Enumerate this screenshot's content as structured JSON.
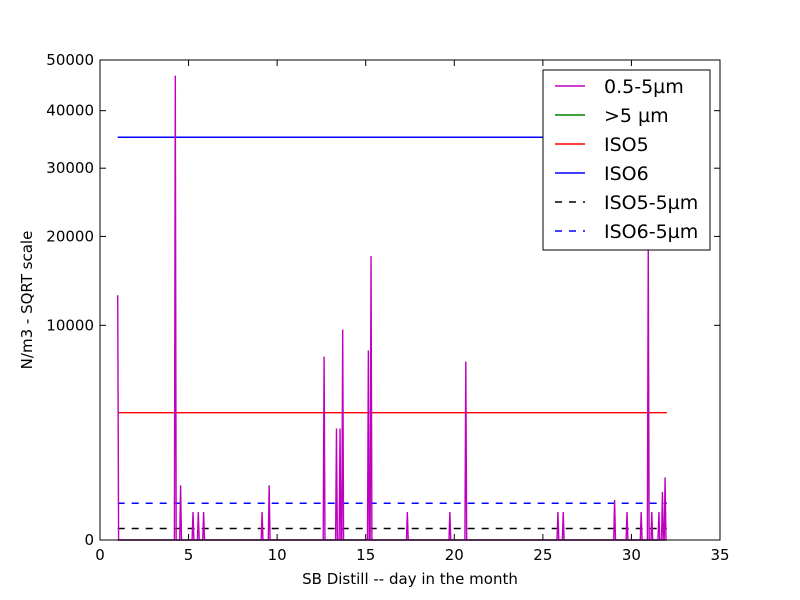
{
  "chart_data": {
    "type": "line",
    "xlabel": "SB Distill -- day in the month",
    "ylabel": "N/m3 - SQRT scale",
    "y_scale": "sqrt",
    "xlim": [
      0,
      35
    ],
    "ylim": [
      0,
      50000
    ],
    "xticks": [
      0,
      5,
      10,
      15,
      20,
      25,
      30,
      35
    ],
    "yticks": [
      0,
      10000,
      20000,
      30000,
      40000,
      50000
    ],
    "legend_position": "top-right",
    "series": [
      {
        "name": "0.5-5µm",
        "color": "#bf00bf",
        "style": "solid",
        "x": [
          1.0,
          1.05,
          4.2,
          4.25,
          4.3,
          4.5,
          4.55,
          4.6,
          5.2,
          5.25,
          5.3,
          5.5,
          5.55,
          5.6,
          5.8,
          5.85,
          5.9,
          9.1,
          9.15,
          9.2,
          9.5,
          9.55,
          9.6,
          12.6,
          12.65,
          12.7,
          13.3,
          13.35,
          13.4,
          13.5,
          13.55,
          13.6,
          13.65,
          13.7,
          13.75,
          15.1,
          15.15,
          15.2,
          15.25,
          15.3,
          15.35,
          17.3,
          17.35,
          17.4,
          19.7,
          19.75,
          19.8,
          20.6,
          20.65,
          20.7,
          25.8,
          25.85,
          25.9,
          26.1,
          26.15,
          26.2,
          29.0,
          29.05,
          29.1,
          29.7,
          29.75,
          29.8,
          30.5,
          30.55,
          30.6,
          30.9,
          30.95,
          31.0,
          31.1,
          31.15,
          31.2,
          31.5,
          31.55,
          31.6,
          31.7,
          31.75,
          31.8,
          31.85,
          31.9,
          31.95
        ],
        "y": [
          13000,
          0,
          0,
          46800,
          0,
          0,
          650,
          0,
          0,
          170,
          0,
          0,
          170,
          0,
          0,
          170,
          0,
          0,
          170,
          0,
          0,
          650,
          0,
          0,
          7300,
          0,
          0,
          2700,
          0,
          0,
          2700,
          0,
          0,
          9600,
          0,
          0,
          7800,
          0,
          0,
          17500,
          0,
          0,
          170,
          0,
          0,
          170,
          0,
          0,
          6900,
          0,
          0,
          170,
          0,
          0,
          170,
          0,
          0,
          350,
          0,
          0,
          170,
          0,
          0,
          170,
          0,
          0,
          19200,
          0,
          0,
          170,
          0,
          0,
          170,
          0,
          0,
          500,
          0,
          0,
          850,
          0
        ]
      },
      {
        "name": ">5 µm",
        "color": "#008000",
        "style": "solid",
        "x": [
          1,
          32
        ],
        "y": [
          0,
          0
        ]
      },
      {
        "name": "ISO5",
        "color": "#ff0000",
        "style": "solid",
        "x": [
          1,
          32
        ],
        "y": [
          3520,
          3520
        ]
      },
      {
        "name": "ISO6",
        "color": "#0000ff",
        "style": "solid",
        "x": [
          1,
          30.8
        ],
        "y": [
          35200,
          35200
        ]
      },
      {
        "name": "ISO5-5µm",
        "color": "#000000",
        "style": "dashed",
        "x": [
          1,
          32
        ],
        "y": [
          29,
          29
        ]
      },
      {
        "name": "ISO6-5µm",
        "color": "#0000ff",
        "style": "dashed",
        "x": [
          1,
          32
        ],
        "y": [
          293,
          293
        ]
      }
    ]
  }
}
